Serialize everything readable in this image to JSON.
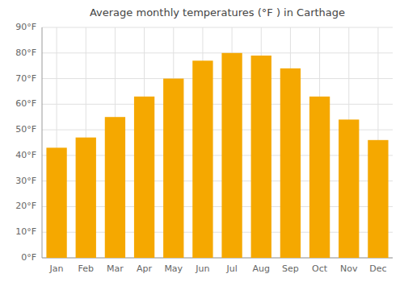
{
  "chart_data": {
    "type": "bar",
    "title": "Average monthly temperatures (°F ) in Carthage",
    "categories": [
      "Jan",
      "Feb",
      "Mar",
      "Apr",
      "May",
      "Jun",
      "Jul",
      "Aug",
      "Sep",
      "Oct",
      "Nov",
      "Dec"
    ],
    "values": [
      43,
      47,
      55,
      63,
      70,
      77,
      80,
      79,
      74,
      63,
      54,
      46
    ],
    "color": "#F5A800",
    "ylim": [
      0,
      90
    ],
    "yticks": [
      {
        "value": 0,
        "label": "0°F"
      },
      {
        "value": 10,
        "label": "10°F"
      },
      {
        "value": 20,
        "label": "20°F"
      },
      {
        "value": 30,
        "label": "30°F"
      },
      {
        "value": 40,
        "label": "40°F"
      },
      {
        "value": 50,
        "label": "50°F"
      },
      {
        "value": 60,
        "label": "60°F"
      },
      {
        "value": 70,
        "label": "70°F"
      },
      {
        "value": 80,
        "label": "80°F"
      },
      {
        "value": 90,
        "label": "90°F"
      }
    ],
    "grid": true
  }
}
